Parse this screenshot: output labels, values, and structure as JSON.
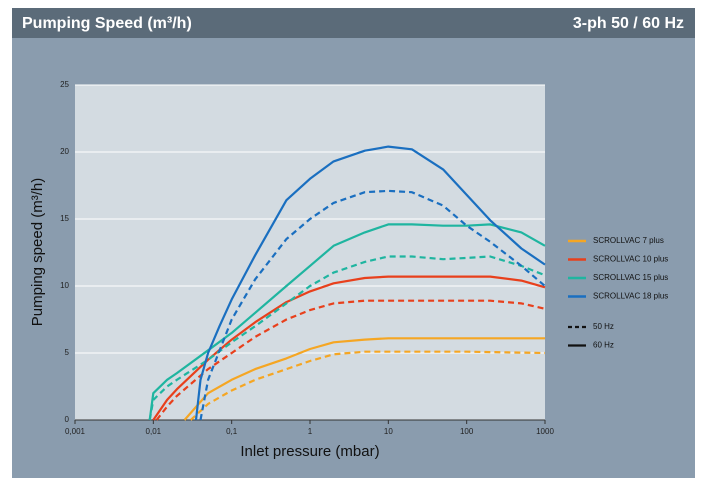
{
  "chart_data": {
    "type": "line",
    "title": "Pumping Speed (m³/h)",
    "subtitle": "3-ph 50 / 60 Hz",
    "x_label": "Inlet pressure (mbar)",
    "y_label": "Pumping speed (m³/h)",
    "xscale": "log",
    "xlim": [
      0.001,
      1000
    ],
    "xticks": [
      {
        "value": 0.001,
        "label": "0,001"
      },
      {
        "value": 0.01,
        "label": "0,01"
      },
      {
        "value": 0.1,
        "label": "0,1"
      },
      1,
      10,
      100,
      1000
    ],
    "ylim": [
      0,
      25
    ],
    "yticks": [
      0,
      5,
      10,
      15,
      20,
      25
    ],
    "grid": true,
    "legend": "right",
    "line_styles": [
      {
        "label": "50 Hz",
        "dash": true
      },
      {
        "label": "60 Hz",
        "dash": false
      }
    ],
    "series": [
      {
        "name": "SCROLLVAC 7 plus",
        "color": "#f5a623",
        "curves": [
          {
            "x": [
              0.03,
              0.05,
              0.1,
              0.2,
              0.5,
              1,
              2,
              5,
              10,
              100,
              1000
            ],
            "values": [
              0,
              1.2,
              2.2,
              3,
              3.8,
              4.4,
              4.9,
              5.1,
              5.1,
              5.1,
              5
            ]
          },
          {
            "x": [
              0.025,
              0.05,
              0.1,
              0.2,
              0.5,
              1,
              2,
              5,
              10,
              100,
              1000
            ],
            "values": [
              0,
              2,
              3,
              3.8,
              4.6,
              5.3,
              5.8,
              6,
              6.1,
              6.1,
              6.1
            ]
          }
        ]
      },
      {
        "name": "SCROLLVAC 10 plus",
        "color": "#e8401c",
        "curves": [
          {
            "x": [
              0.011,
              0.015,
              0.02,
              0.05,
              0.1,
              0.2,
              0.5,
              1,
              2,
              5,
              10,
              100,
              200,
              500,
              1000
            ],
            "values": [
              0,
              1,
              1.8,
              3.8,
              5,
              6.2,
              7.5,
              8.2,
              8.7,
              8.9,
              8.9,
              8.9,
              8.9,
              8.7,
              8.3
            ]
          },
          {
            "x": [
              0.01,
              0.015,
              0.02,
              0.05,
              0.1,
              0.2,
              0.5,
              1,
              2,
              5,
              10,
              100,
              200,
              500,
              1000
            ],
            "values": [
              0,
              1.5,
              2.3,
              4.5,
              6,
              7.3,
              8.8,
              9.6,
              10.2,
              10.6,
              10.7,
              10.7,
              10.7,
              10.4,
              9.9
            ]
          }
        ]
      },
      {
        "name": "SCROLLVAC 15 plus",
        "color": "#1fb5a0",
        "curves": [
          {
            "x": [
              0.009,
              0.01,
              0.015,
              0.02,
              0.05,
              0.1,
              0.2,
              0.5,
              1,
              2,
              5,
              10,
              20,
              50,
              100,
              200,
              500,
              1000
            ],
            "values": [
              0,
              1.5,
              2.5,
              3,
              4.5,
              5.8,
              7,
              8.7,
              10,
              11,
              11.8,
              12.2,
              12.2,
              12,
              12.1,
              12.2,
              11.5,
              10.8
            ]
          },
          {
            "x": [
              0.009,
              0.01,
              0.015,
              0.02,
              0.05,
              0.1,
              0.2,
              0.5,
              1,
              2,
              5,
              10,
              20,
              50,
              100,
              200,
              500,
              1000
            ],
            "values": [
              0,
              2,
              3,
              3.5,
              5.2,
              6.5,
              8,
              10,
              11.5,
              13,
              14,
              14.6,
              14.6,
              14.5,
              14.5,
              14.6,
              14,
              13
            ]
          }
        ]
      },
      {
        "name": "SCROLLVAC 18 plus",
        "color": "#1a6fc0",
        "curves": [
          {
            "x": [
              0.04,
              0.05,
              0.1,
              0.2,
              0.5,
              1,
              2,
              5,
              10,
              20,
              50,
              100,
              200,
              500,
              1000
            ],
            "values": [
              0,
              3,
              7.5,
              10.5,
              13.5,
              15,
              16.2,
              17,
              17.1,
              17,
              16,
              14.5,
              13.3,
              11.5,
              10
            ]
          },
          {
            "x": [
              0.035,
              0.04,
              0.05,
              0.07,
              0.1,
              0.2,
              0.5,
              1,
              2,
              5,
              10,
              20,
              50,
              100,
              200,
              500,
              1000
            ],
            "values": [
              0,
              3,
              5,
              7,
              9,
              12.3,
              16.4,
              18,
              19.3,
              20.1,
              20.4,
              20.2,
              18.7,
              16.8,
              14.9,
              12.8,
              11.6
            ]
          }
        ]
      }
    ]
  }
}
